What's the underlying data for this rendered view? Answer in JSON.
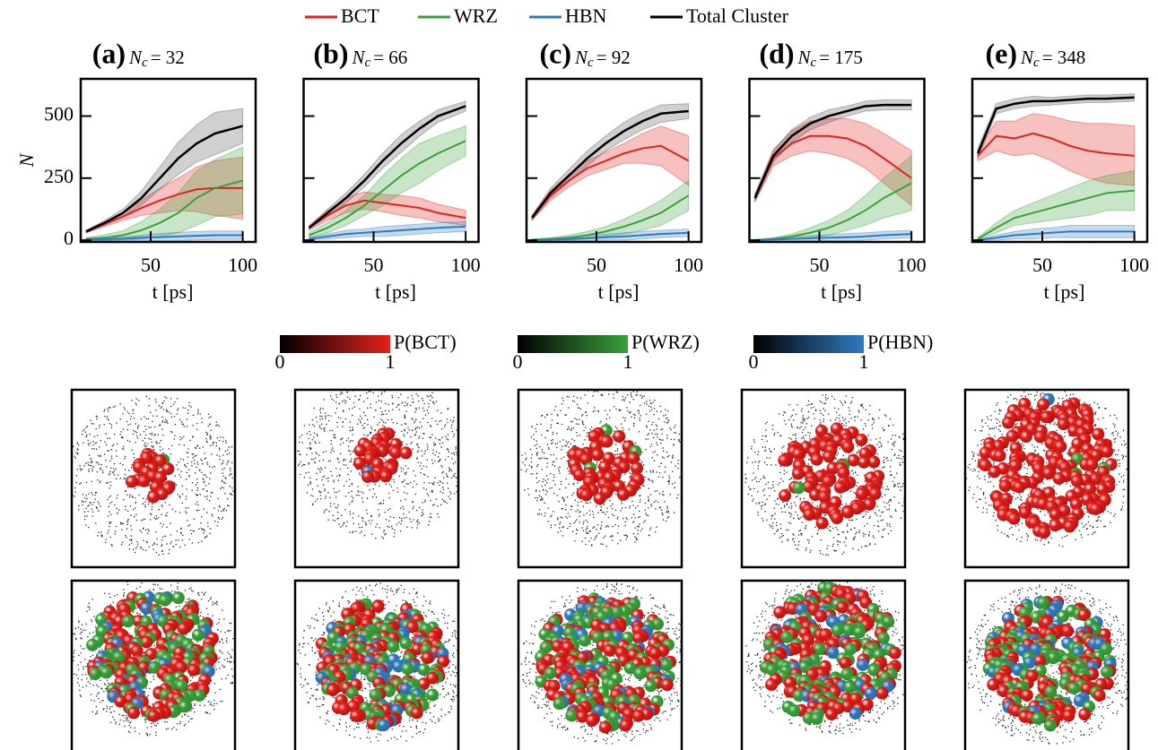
{
  "chart_data": [
    {
      "type": "line",
      "title": "(a)",
      "subtitle": {
        "symbol": "N",
        "sub": "c",
        "rest": "= 32"
      },
      "xlabel": "t [ps]",
      "ylabel": "N",
      "show_ytick_labels": true,
      "x": [
        15,
        25,
        35,
        45,
        55,
        65,
        75,
        85,
        100
      ],
      "xlim": [
        12,
        107
      ],
      "ylim": [
        -7,
        650
      ],
      "xticks": [
        50,
        100
      ],
      "yticks": [
        0,
        250,
        500
      ],
      "series": [
        {
          "name": "BCT",
          "color": "#e3211c",
          "values": [
            35,
            65,
            95,
            130,
            160,
            185,
            205,
            210,
            210
          ],
          "errors": [
            5,
            10,
            15,
            30,
            50,
            65,
            90,
            110,
            125
          ]
        },
        {
          "name": "WRZ",
          "color": "#3aa13a",
          "values": [
            5,
            10,
            20,
            40,
            70,
            110,
            170,
            210,
            240
          ],
          "errors": [
            5,
            12,
            18,
            35,
            55,
            80,
            110,
            115,
            135
          ]
        },
        {
          "name": "HBN",
          "color": "#2f7bbf",
          "values": [
            2,
            4,
            6,
            10,
            12,
            15,
            18,
            20,
            20
          ],
          "errors": [
            3,
            5,
            7,
            10,
            15,
            17,
            17,
            17,
            17
          ]
        },
        {
          "name": "Total Cluster",
          "color": "#000000",
          "values": [
            35,
            70,
            110,
            170,
            250,
            330,
            390,
            430,
            460
          ],
          "errors": [
            5,
            10,
            15,
            28,
            45,
            65,
            75,
            85,
            70
          ]
        }
      ]
    },
    {
      "type": "line",
      "title": "(b)",
      "subtitle": {
        "symbol": "N",
        "sub": "c",
        "rest": "= 66"
      },
      "xlabel": "t [ps]",
      "show_ytick_labels": false,
      "x": [
        15,
        25,
        35,
        45,
        55,
        65,
        75,
        85,
        100
      ],
      "xlim": [
        12,
        107
      ],
      "ylim": [
        -7,
        650
      ],
      "xticks": [
        50,
        100
      ],
      "yticks": [
        0,
        250,
        500
      ],
      "series": [
        {
          "name": "BCT",
          "color": "#e3211c",
          "values": [
            50,
            100,
            140,
            160,
            150,
            140,
            130,
            110,
            90
          ],
          "errors": [
            10,
            20,
            30,
            35,
            35,
            40,
            40,
            35,
            30
          ]
        },
        {
          "name": "WRZ",
          "color": "#3aa13a",
          "values": [
            20,
            50,
            90,
            140,
            200,
            260,
            310,
            350,
            400
          ],
          "errors": [
            10,
            20,
            30,
            40,
            60,
            70,
            80,
            70,
            60
          ]
        },
        {
          "name": "HBN",
          "color": "#2f7bbf",
          "values": [
            5,
            15,
            25,
            30,
            35,
            40,
            45,
            50,
            55
          ],
          "errors": [
            5,
            10,
            15,
            15,
            20,
            20,
            20,
            20,
            20
          ]
        },
        {
          "name": "Total Cluster",
          "color": "#000000",
          "values": [
            50,
            110,
            170,
            240,
            320,
            390,
            450,
            500,
            540
          ],
          "errors": [
            5,
            15,
            20,
            25,
            30,
            35,
            30,
            25,
            20
          ]
        }
      ]
    },
    {
      "type": "line",
      "title": "(c)",
      "subtitle": {
        "symbol": "N",
        "sub": "c",
        "rest": "= 92"
      },
      "xlabel": "t [ps]",
      "show_ytick_labels": false,
      "x": [
        15,
        25,
        35,
        45,
        55,
        65,
        75,
        85,
        100
      ],
      "xlim": [
        12,
        107
      ],
      "ylim": [
        -7,
        650
      ],
      "xticks": [
        50,
        100
      ],
      "yticks": [
        0,
        250,
        500
      ],
      "series": [
        {
          "name": "BCT",
          "color": "#e3211c",
          "values": [
            90,
            180,
            240,
            290,
            320,
            350,
            370,
            380,
            320
          ],
          "errors": [
            10,
            20,
            25,
            30,
            35,
            40,
            60,
            80,
            100
          ]
        },
        {
          "name": "WRZ",
          "color": "#3aa13a",
          "values": [
            2,
            5,
            10,
            20,
            35,
            55,
            80,
            110,
            180
          ],
          "errors": [
            2,
            5,
            10,
            15,
            20,
            30,
            40,
            50,
            60
          ]
        },
        {
          "name": "HBN",
          "color": "#2f7bbf",
          "values": [
            0,
            2,
            5,
            8,
            12,
            15,
            20,
            25,
            30
          ],
          "errors": [
            2,
            5,
            8,
            10,
            12,
            15,
            15,
            15,
            15
          ]
        },
        {
          "name": "Total Cluster",
          "color": "#000000",
          "values": [
            90,
            190,
            260,
            330,
            390,
            440,
            480,
            510,
            520
          ],
          "errors": [
            10,
            20,
            25,
            30,
            30,
            35,
            35,
            35,
            30
          ]
        }
      ]
    },
    {
      "type": "line",
      "title": "(d)",
      "subtitle": {
        "symbol": "N",
        "sub": "c",
        "rest": "= 175"
      },
      "xlabel": "t [ps]",
      "show_ytick_labels": false,
      "x": [
        15,
        25,
        35,
        45,
        55,
        65,
        75,
        85,
        100
      ],
      "xlim": [
        12,
        107
      ],
      "ylim": [
        -7,
        650
      ],
      "xticks": [
        50,
        100
      ],
      "yticks": [
        0,
        250,
        500
      ],
      "series": [
        {
          "name": "BCT",
          "color": "#e3211c",
          "values": [
            170,
            330,
            390,
            420,
            420,
            410,
            380,
            330,
            250
          ],
          "errors": [
            15,
            30,
            50,
            60,
            70,
            80,
            90,
            100,
            110
          ]
        },
        {
          "name": "WRZ",
          "color": "#3aa13a",
          "values": [
            0,
            5,
            15,
            30,
            50,
            80,
            120,
            170,
            230
          ],
          "errors": [
            2,
            5,
            10,
            20,
            30,
            40,
            60,
            80,
            110
          ]
        },
        {
          "name": "HBN",
          "color": "#2f7bbf",
          "values": [
            0,
            3,
            5,
            8,
            10,
            12,
            15,
            20,
            25
          ],
          "errors": [
            2,
            5,
            8,
            10,
            12,
            15,
            15,
            15,
            15
          ]
        },
        {
          "name": "Total Cluster",
          "color": "#000000",
          "values": [
            170,
            340,
            420,
            470,
            500,
            520,
            540,
            545,
            545
          ],
          "errors": [
            15,
            25,
            25,
            25,
            25,
            20,
            20,
            20,
            20
          ]
        }
      ]
    },
    {
      "type": "line",
      "title": "(e)",
      "subtitle": {
        "symbol": "N",
        "sub": "c",
        "rest": "= 348"
      },
      "xlabel": "t [ps]",
      "show_ytick_labels": false,
      "x": [
        15,
        25,
        35,
        45,
        55,
        65,
        75,
        85,
        100
      ],
      "xlim": [
        12,
        107
      ],
      "ylim": [
        -7,
        650
      ],
      "xticks": [
        50,
        100
      ],
      "yticks": [
        0,
        250,
        500
      ],
      "series": [
        {
          "name": "BCT",
          "color": "#e3211c",
          "values": [
            340,
            420,
            410,
            430,
            410,
            380,
            360,
            350,
            340
          ],
          "errors": [
            20,
            60,
            70,
            80,
            90,
            100,
            110,
            120,
            120
          ]
        },
        {
          "name": "WRZ",
          "color": "#3aa13a",
          "values": [
            5,
            50,
            90,
            110,
            130,
            150,
            170,
            190,
            200
          ],
          "errors": [
            5,
            20,
            30,
            40,
            50,
            60,
            70,
            70,
            80
          ]
        },
        {
          "name": "HBN",
          "color": "#2f7bbf",
          "values": [
            0,
            10,
            20,
            25,
            30,
            35,
            35,
            35,
            35
          ],
          "errors": [
            2,
            10,
            15,
            20,
            20,
            25,
            25,
            25,
            25
          ]
        },
        {
          "name": "Total Cluster",
          "color": "#000000",
          "values": [
            350,
            530,
            550,
            560,
            560,
            565,
            570,
            570,
            575
          ],
          "errors": [
            20,
            20,
            20,
            20,
            15,
            15,
            15,
            15,
            15
          ]
        }
      ]
    }
  ],
  "colorbars": [
    {
      "label": "P(BCT)",
      "color": "#e3211c",
      "ticks": [
        0,
        1
      ]
    },
    {
      "label": "P(WRZ)",
      "color": "#3aa13a",
      "ticks": [
        0,
        1
      ]
    },
    {
      "label": "P(HBN)",
      "color": "#2f7bbf",
      "ticks": [
        0,
        1
      ]
    }
  ]
}
